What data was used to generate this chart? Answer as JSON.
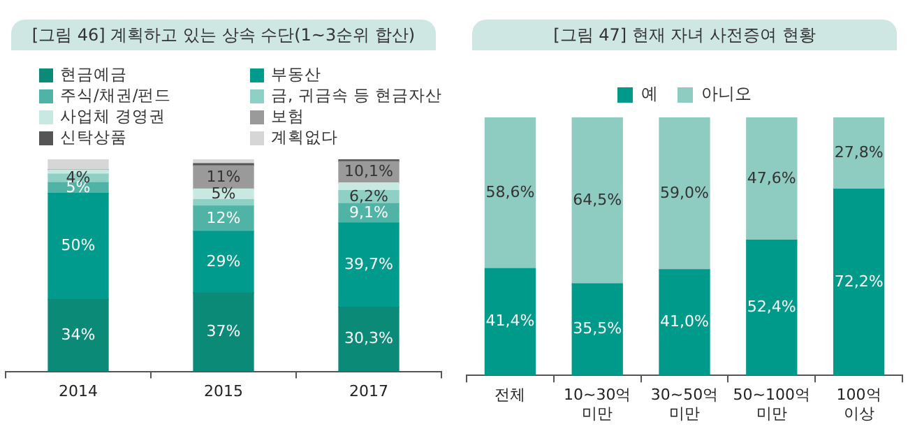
{
  "chart_data": [
    {
      "type": "bar",
      "title": "[그림 46] 계획하고 있는 상속 수단(1~3순위 합산)",
      "stacked": true,
      "legend": "top",
      "tick_labels": "x",
      "ylim": [
        0,
        100
      ],
      "categories": [
        "2014",
        "2015",
        "2017"
      ],
      "series": [
        {
          "name": "현금예금",
          "color": "#0b8a78",
          "values": [
            34,
            37,
            30.3
          ],
          "value_labels": [
            "34%",
            "37%",
            "30,3%"
          ]
        },
        {
          "name": "부동산",
          "color": "#009b8c",
          "values": [
            50,
            29,
            39.7
          ],
          "value_labels": [
            "50%",
            "29%",
            "39,7%"
          ]
        },
        {
          "name": "주식/채권/펀드",
          "color": "#4fb3a5",
          "values": [
            5,
            12,
            9.1
          ],
          "value_labels": [
            "5%",
            "12%",
            "9,1%"
          ]
        },
        {
          "name": "금, 귀금속 등 현금자산",
          "color": "#8fd0c5",
          "values": [
            4,
            3,
            6.2
          ],
          "value_labels": [
            "4%",
            null,
            "6,2%"
          ]
        },
        {
          "name": "사업체 경영권",
          "color": "#c8e8e2",
          "values": [
            2,
            5,
            3.6
          ],
          "value_labels": [
            null,
            "5%",
            null
          ]
        },
        {
          "name": "보험",
          "color": "#9a9a9a",
          "values": [
            0,
            11,
            10.1
          ],
          "value_labels": [
            null,
            "11%",
            "10,1%"
          ]
        },
        {
          "name": "신탁상품",
          "color": "#555555",
          "values": [
            0,
            1,
            1
          ],
          "value_labels": [
            null,
            null,
            null
          ]
        },
        {
          "name": "계획없다",
          "color": "#d6d6d6",
          "values": [
            5,
            2,
            0
          ],
          "value_labels": [
            null,
            null,
            null
          ]
        }
      ]
    },
    {
      "type": "bar",
      "title": "[그림 47] 현재 자녀 사전증여 현황",
      "stacked": true,
      "legend": "top",
      "tick_labels": "x",
      "ylim": [
        0,
        100
      ],
      "categories": [
        "전체",
        "10~30억 미만",
        "30~50억 미만",
        "50~100억 미만",
        "100억 이상"
      ],
      "series": [
        {
          "name": "예",
          "color": "#009a8a",
          "values": [
            41.4,
            35.5,
            41.0,
            52.4,
            72.2
          ],
          "value_labels": [
            "41,4%",
            "35,5%",
            "41,0%",
            "52,4%",
            "72,2%"
          ]
        },
        {
          "name": "아니오",
          "color": "#8ecbc1",
          "values": [
            58.6,
            64.5,
            59.0,
            47.6,
            27.8
          ],
          "value_labels": [
            "58,6%",
            "64,5%",
            "59,0%",
            "47,6%",
            "27,8%"
          ]
        }
      ]
    }
  ]
}
